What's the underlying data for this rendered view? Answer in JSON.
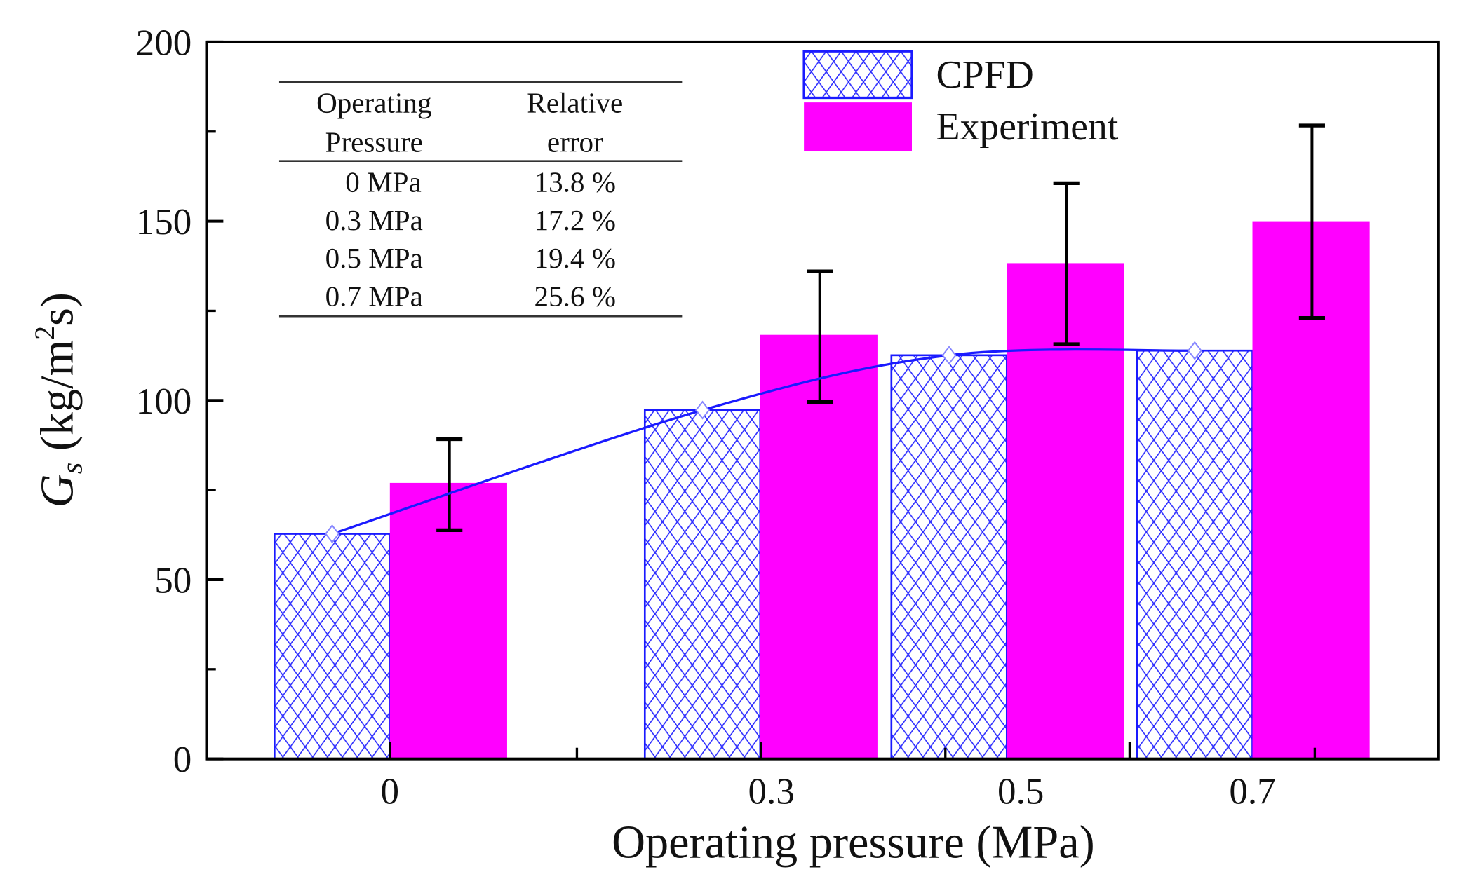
{
  "chart_data": {
    "type": "bar",
    "xlabel": "Operating pressure (MPa)",
    "ylabel_main": "G",
    "ylabel_sub": "s",
    "ylabel_unit_pre": " (kg/m",
    "ylabel_unit_sup": "2",
    "ylabel_unit_post": "s)",
    "categories": [
      "0",
      "0.3",
      "0.5",
      "0.7"
    ],
    "ylim": [
      0,
      200
    ],
    "yticks": [
      "0",
      "50",
      "100",
      "150",
      "200"
    ],
    "series": [
      {
        "name": "CPFD",
        "values": [
          62.8,
          97.3,
          112.6,
          113.9
        ],
        "color": "#1a1aff",
        "fill": "crosshatch",
        "trend_line": true
      },
      {
        "name": "Experiment",
        "values": [
          77,
          118.3,
          138.3,
          150
        ],
        "color": "#ff00ff",
        "fill": "solid",
        "error_low": [
          63.8,
          99.6,
          115.7,
          123
        ],
        "error_high": [
          89.2,
          136,
          160.6,
          176.7
        ]
      }
    ],
    "legend_position": "top-right",
    "grid": false,
    "inset_table": {
      "headers": [
        [
          "Operating",
          "Pressure"
        ],
        [
          "Relative",
          "error"
        ]
      ],
      "rows": [
        [
          "0 MPa",
          "13.8 %"
        ],
        [
          "0.3 MPa",
          "17.2 %"
        ],
        [
          "0.5 MPa",
          "19.4 %"
        ],
        [
          "0.7 MPa",
          "25.6 %"
        ]
      ]
    }
  }
}
